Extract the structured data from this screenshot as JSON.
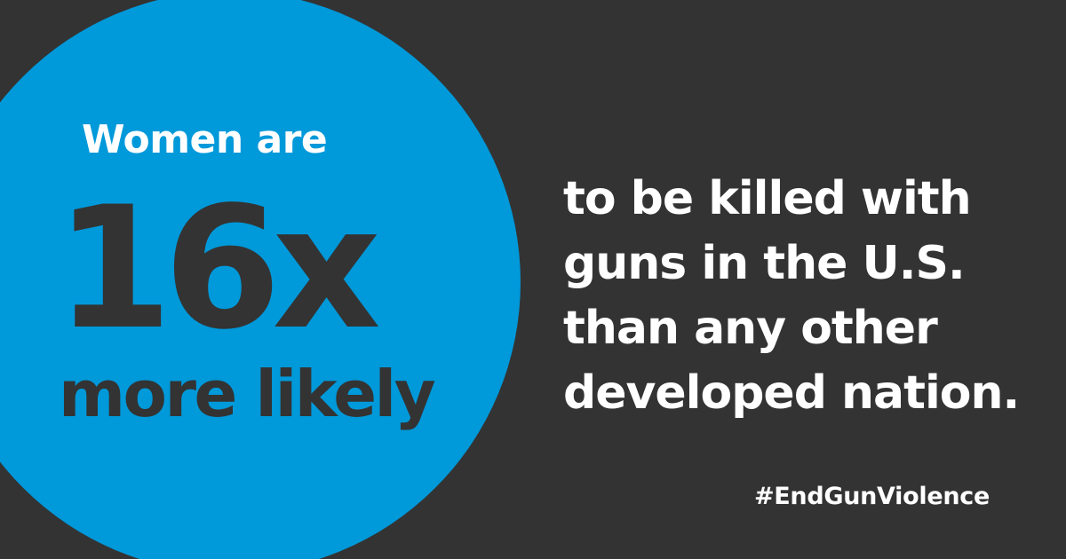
{
  "circle": {
    "lead": "Women are",
    "multiplier": "16x",
    "likely": "more likely"
  },
  "statement": {
    "lines": [
      "to be killed with",
      "guns in the U.S.",
      "than any other",
      "developed nation."
    ]
  },
  "hashtag": "#EndGunViolence",
  "colors": {
    "background": "#333333",
    "circle": "#0099DA",
    "light_text": "#FFFFFF",
    "dark_text": "#333333"
  }
}
